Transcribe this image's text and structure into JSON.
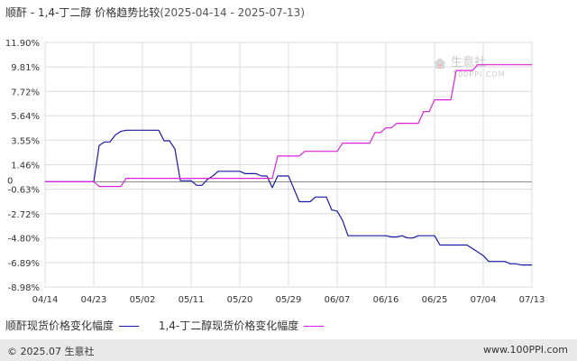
{
  "title": {
    "main": "顺酐 - 1,4-丁二醇 价格趋势比较",
    "range": "(2025-04-14 - 2025-07-13)"
  },
  "watermark": {
    "text": "生意社",
    "sub": "100PPI.COM"
  },
  "footer": {
    "left": "© 2025.07 生意社",
    "right": "www.100PPI.com"
  },
  "chart_data": {
    "type": "line",
    "title": "顺酐 - 1,4-丁二醇 价格趋势比较",
    "subtitle": "(2025-04-14 - 2025-07-13)",
    "xlabel": "",
    "ylabel": "",
    "y_ticks": [
      "11.90%",
      "9.81%",
      "7.72%",
      "5.64%",
      "3.55%",
      "1.46%",
      "-0.63%",
      "-2.72%",
      "-4.80%",
      "-6.89%",
      "-8.98%"
    ],
    "y_tick_values": [
      11.9,
      9.81,
      7.72,
      5.64,
      3.55,
      1.46,
      -0.63,
      -2.72,
      -4.8,
      -6.89,
      -8.98
    ],
    "zero_label": "0",
    "x_ticks": [
      "04/14",
      "04/23",
      "05/02",
      "05/11",
      "05/20",
      "05/29",
      "06/07",
      "06/16",
      "06/25",
      "07/04",
      "07/13"
    ],
    "ylim": [
      -8.98,
      11.9
    ],
    "xlim_days": [
      0,
      90
    ],
    "grid": true,
    "legend_position": "bottom",
    "series": [
      {
        "name": "顺酐现货价格变化幅度",
        "color": "#1a1aa8",
        "points": [
          [
            0,
            0
          ],
          [
            9,
            0
          ],
          [
            10,
            3.1
          ],
          [
            11,
            3.4
          ],
          [
            12,
            3.4
          ],
          [
            13,
            4.0
          ],
          [
            14,
            4.3
          ],
          [
            15,
            4.4
          ],
          [
            16,
            4.4
          ],
          [
            17,
            4.4
          ],
          [
            20,
            4.4
          ],
          [
            21,
            4.4
          ],
          [
            22,
            3.5
          ],
          [
            23,
            3.5
          ],
          [
            24,
            2.8
          ],
          [
            25,
            0.1
          ],
          [
            26,
            0.1
          ],
          [
            27,
            0.1
          ],
          [
            28,
            -0.3
          ],
          [
            29,
            -0.3
          ],
          [
            30,
            0.2
          ],
          [
            31,
            0.5
          ],
          [
            32,
            0.9
          ],
          [
            33,
            0.9
          ],
          [
            35,
            0.9
          ],
          [
            36,
            0.9
          ],
          [
            37,
            0.7
          ],
          [
            38,
            0.7
          ],
          [
            39,
            0.7
          ],
          [
            40,
            0.5
          ],
          [
            41,
            0.5
          ],
          [
            42,
            -0.5
          ],
          [
            43,
            0.5
          ],
          [
            44,
            0.5
          ],
          [
            45,
            0.5
          ],
          [
            46,
            -0.6
          ],
          [
            47,
            -1.7
          ],
          [
            48,
            -1.7
          ],
          [
            49,
            -1.7
          ],
          [
            50,
            -1.3
          ],
          [
            51,
            -1.3
          ],
          [
            52,
            -1.3
          ],
          [
            53,
            -2.4
          ],
          [
            54,
            -2.5
          ],
          [
            55,
            -3.3
          ],
          [
            56,
            -4.6
          ],
          [
            57,
            -4.6
          ],
          [
            60,
            -4.6
          ],
          [
            61,
            -4.6
          ],
          [
            62,
            -4.6
          ],
          [
            63,
            -4.6
          ],
          [
            64,
            -4.7
          ],
          [
            65,
            -4.7
          ],
          [
            66,
            -4.6
          ],
          [
            67,
            -4.8
          ],
          [
            68,
            -4.8
          ],
          [
            69,
            -4.6
          ],
          [
            70,
            -4.6
          ],
          [
            71,
            -4.6
          ],
          [
            72,
            -4.6
          ],
          [
            73,
            -5.4
          ],
          [
            74,
            -5.4
          ],
          [
            77,
            -5.4
          ],
          [
            78,
            -5.4
          ],
          [
            79,
            -5.7
          ],
          [
            80,
            -6.0
          ],
          [
            81,
            -6.3
          ],
          [
            82,
            -6.8
          ],
          [
            83,
            -6.8
          ],
          [
            84,
            -6.8
          ],
          [
            85,
            -6.8
          ],
          [
            86,
            -7.0
          ],
          [
            87,
            -7.0
          ],
          [
            88,
            -7.1
          ],
          [
            89,
            -7.1
          ],
          [
            90,
            -7.1
          ]
        ]
      },
      {
        "name": "1,4-丁二醇现货价格变化幅度",
        "color": "#dd22dd",
        "points": [
          [
            0,
            0
          ],
          [
            9,
            0
          ],
          [
            10,
            -0.4
          ],
          [
            11,
            -0.4
          ],
          [
            14,
            -0.4
          ],
          [
            15,
            0.3
          ],
          [
            16,
            0.3
          ],
          [
            42,
            0.3
          ],
          [
            43,
            2.2
          ],
          [
            44,
            2.2
          ],
          [
            47,
            2.2
          ],
          [
            48,
            2.6
          ],
          [
            49,
            2.6
          ],
          [
            54,
            2.6
          ],
          [
            55,
            3.3
          ],
          [
            56,
            3.3
          ],
          [
            60,
            3.3
          ],
          [
            61,
            4.2
          ],
          [
            62,
            4.2
          ],
          [
            63,
            4.6
          ],
          [
            64,
            4.6
          ],
          [
            65,
            5.0
          ],
          [
            66,
            5.0
          ],
          [
            68,
            5.0
          ],
          [
            69,
            5.0
          ],
          [
            70,
            6.0
          ],
          [
            71,
            6.0
          ],
          [
            72,
            7.0
          ],
          [
            73,
            7.0
          ],
          [
            75,
            7.0
          ],
          [
            76,
            9.5
          ],
          [
            77,
            9.5
          ],
          [
            78,
            9.5
          ],
          [
            79,
            9.5
          ],
          [
            80,
            10.0
          ],
          [
            81,
            10.0
          ],
          [
            82,
            10.0
          ],
          [
            90,
            10.0
          ]
        ]
      }
    ]
  }
}
